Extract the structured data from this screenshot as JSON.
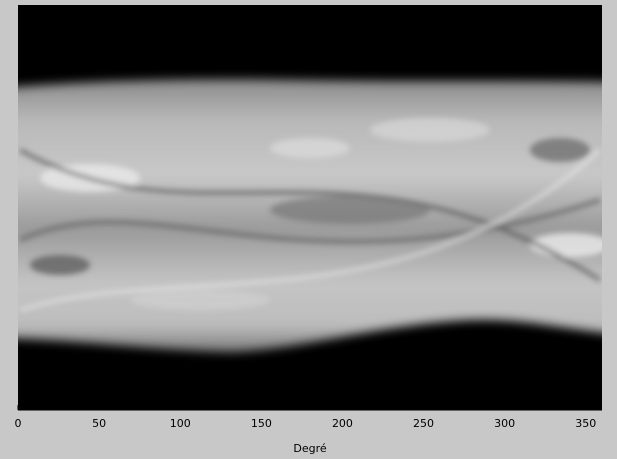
{
  "chart_data": {
    "type": "image",
    "xlabel": "Degré",
    "xlim": [
      0,
      360
    ],
    "xticks": [
      0,
      50,
      100,
      150,
      200,
      250,
      300,
      350
    ]
  }
}
